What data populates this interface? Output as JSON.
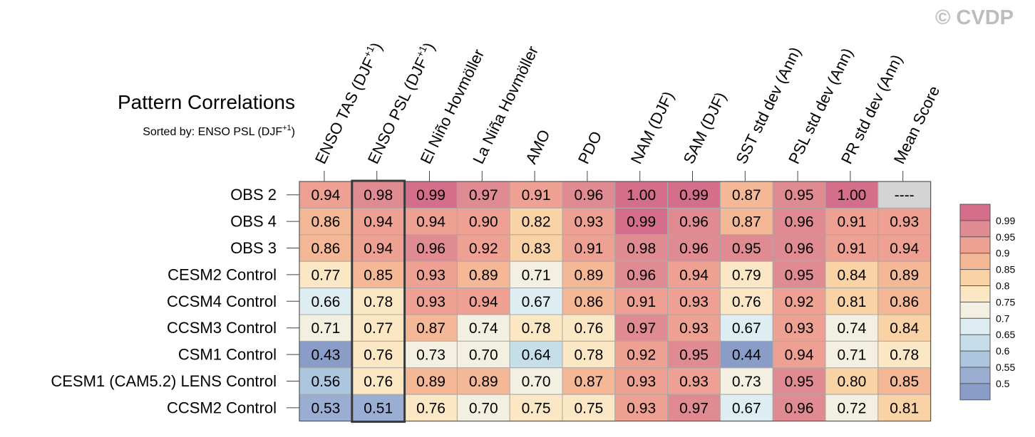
{
  "watermark": "© CVDP",
  "chart_data": {
    "type": "heatmap",
    "title": "Pattern Correlations",
    "subtitle": "Sorted by: ENSO PSL (DJF+1)",
    "columns": [
      {
        "name": "ENSO TAS (DJF",
        "sup": "+1",
        "suffix": ")"
      },
      {
        "name": "ENSO PSL (DJF",
        "sup": "+1",
        "suffix": ")"
      },
      {
        "name": "El Niño Hovmöller",
        "sup": "",
        "suffix": ""
      },
      {
        "name": "La Niña Hovmöller",
        "sup": "",
        "suffix": ""
      },
      {
        "name": "AMO",
        "sup": "",
        "suffix": ""
      },
      {
        "name": "PDO",
        "sup": "",
        "suffix": ""
      },
      {
        "name": "NAM (DJF)",
        "sup": "",
        "suffix": ""
      },
      {
        "name": "SAM (DJF)",
        "sup": "",
        "suffix": ""
      },
      {
        "name": "SST std dev (Ann)",
        "sup": "",
        "suffix": ""
      },
      {
        "name": "PSL std dev (Ann)",
        "sup": "",
        "suffix": ""
      },
      {
        "name": "PR std dev (Ann)",
        "sup": "",
        "suffix": ""
      },
      {
        "name": "Mean Score",
        "sup": "",
        "suffix": ""
      }
    ],
    "rows": [
      {
        "name": "OBS 2",
        "values": [
          "0.94",
          "0.98",
          "0.99",
          "0.97",
          "0.91",
          "0.96",
          "1.00",
          "0.99",
          "0.87",
          "0.95",
          "1.00",
          "----"
        ]
      },
      {
        "name": "OBS 4",
        "values": [
          "0.86",
          "0.94",
          "0.94",
          "0.90",
          "0.82",
          "0.93",
          "0.99",
          "0.96",
          "0.87",
          "0.96",
          "0.91",
          "0.93"
        ]
      },
      {
        "name": "OBS 3",
        "values": [
          "0.86",
          "0.94",
          "0.96",
          "0.92",
          "0.83",
          "0.91",
          "0.98",
          "0.96",
          "0.95",
          "0.96",
          "0.91",
          "0.94"
        ]
      },
      {
        "name": "CESM2 Control",
        "values": [
          "0.77",
          "0.85",
          "0.93",
          "0.89",
          "0.71",
          "0.89",
          "0.96",
          "0.94",
          "0.79",
          "0.95",
          "0.84",
          "0.89"
        ]
      },
      {
        "name": "CCSM4 Control",
        "values": [
          "0.66",
          "0.78",
          "0.93",
          "0.94",
          "0.67",
          "0.86",
          "0.91",
          "0.93",
          "0.76",
          "0.92",
          "0.81",
          "0.86"
        ]
      },
      {
        "name": "CCSM3 Control",
        "values": [
          "0.71",
          "0.77",
          "0.87",
          "0.74",
          "0.78",
          "0.76",
          "0.97",
          "0.93",
          "0.67",
          "0.93",
          "0.74",
          "0.84"
        ]
      },
      {
        "name": "CSM1 Control",
        "values": [
          "0.43",
          "0.76",
          "0.73",
          "0.70",
          "0.64",
          "0.78",
          "0.92",
          "0.95",
          "0.44",
          "0.94",
          "0.71",
          "0.78"
        ]
      },
      {
        "name": "CESM1 (CAM5.2) LENS Control",
        "values": [
          "0.56",
          "0.76",
          "0.89",
          "0.89",
          "0.70",
          "0.87",
          "0.93",
          "0.93",
          "0.73",
          "0.95",
          "0.80",
          "0.85"
        ]
      },
      {
        "name": "CCSM2 Control",
        "values": [
          "0.53",
          "0.51",
          "0.76",
          "0.70",
          "0.75",
          "0.75",
          "0.93",
          "0.97",
          "0.67",
          "0.96",
          "0.72",
          "0.81"
        ]
      }
    ],
    "highlight_column": 1,
    "legend": {
      "labels": [
        "0.99",
        "0.95",
        "0.9",
        "0.85",
        "0.8",
        "0.75",
        "0.7",
        "0.65",
        "0.6",
        "0.55",
        "0.5"
      ],
      "colors": [
        "#d46e8a",
        "#e08a92",
        "#eea092",
        "#f5b896",
        "#f9d2a6",
        "#fbe7c3",
        "#f3f0e2",
        "#deedf1",
        "#c6deea",
        "#adc6df",
        "#9aaed3",
        "#8a9cc8"
      ]
    },
    "missing_color": "#d4d4d4"
  }
}
